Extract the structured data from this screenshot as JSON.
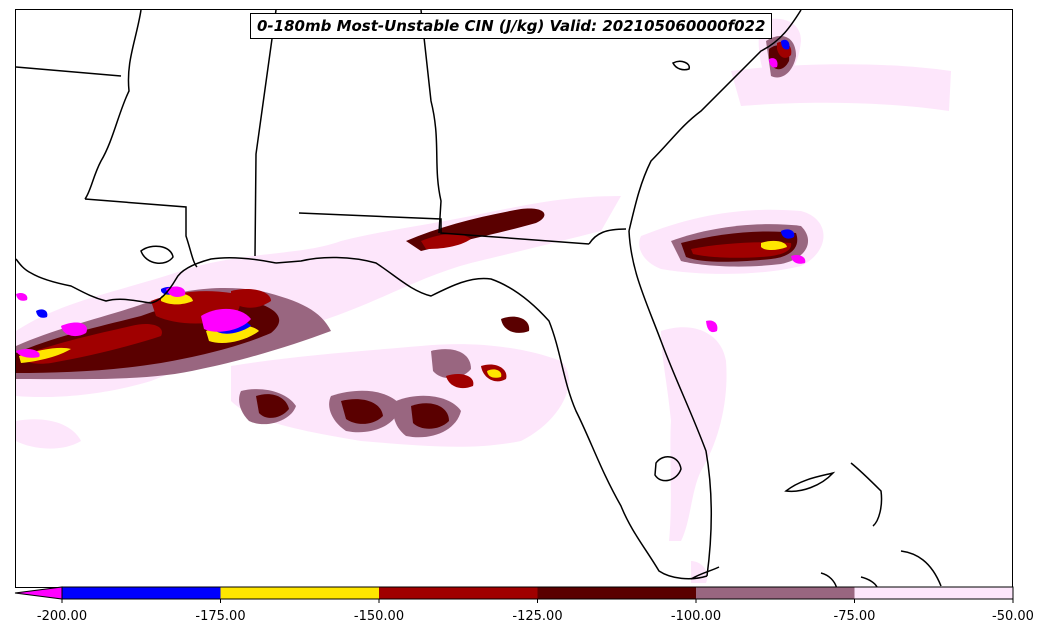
{
  "title": "0-180mb Most-Unstable CIN (J/kg) Valid: 202105060000f022",
  "colorbar": {
    "min": -200,
    "max": -50,
    "extend": "min",
    "ticks": [
      "-200.00",
      "-175.00",
      "-150.00",
      "-125.00",
      "-100.00",
      "-75.00",
      "-50.00"
    ],
    "levels": [
      {
        "from": -200,
        "to": -175,
        "color": "#0000ff"
      },
      {
        "from": -175,
        "to": -150,
        "color": "#ffe600"
      },
      {
        "from": -150,
        "to": -125,
        "color": "#a00000"
      },
      {
        "from": -125,
        "to": -100,
        "color": "#5a0000"
      },
      {
        "from": -100,
        "to": -75,
        "color": "#996680"
      },
      {
        "from": -75,
        "to": -50,
        "color": "#fde6fb"
      }
    ],
    "extend_color": "#ff00ff"
  },
  "map": {
    "region": "Southeastern United States and Gulf of Mexico",
    "field_colors": {
      "light": "#fde6fb",
      "mauve": "#996680",
      "dark_red": "#5a0000",
      "red": "#a00000",
      "yellow": "#ffe600",
      "blue": "#0000ff",
      "magenta": "#ff00ff"
    }
  }
}
